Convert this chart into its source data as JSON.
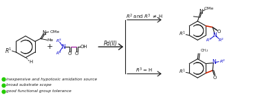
{
  "bg_color": "#ffffff",
  "black": "#1a1a1a",
  "red": "#cc2200",
  "blue": "#0000cc",
  "green": "#22cc00",
  "purple": "#990099",
  "gray": "#555555",
  "bullet_texts": [
    "inexpensive and hypotoxic amidation source",
    "broad substrate scope",
    "good functional group tolerance"
  ],
  "figw": 3.78,
  "figh": 1.44,
  "dpi": 100
}
